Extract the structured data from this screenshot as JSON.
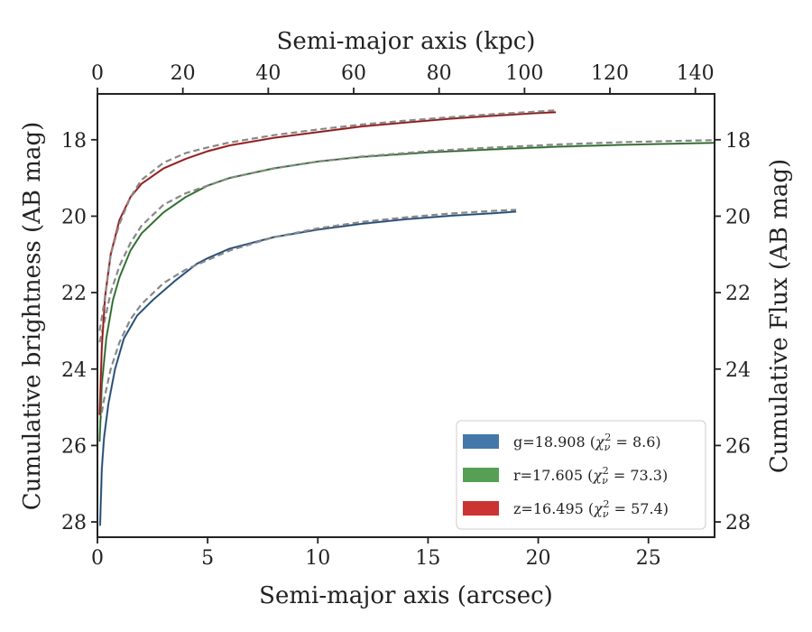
{
  "chart_data": {
    "type": "line",
    "xlabel": "Semi-major axis (arcsec)",
    "ylabel": "Cumulative brightness (AB mag)",
    "top_xlabel": "Semi-major axis (kpc)",
    "right_ylabel": "Cumulative Flux (AB mag)",
    "xlim": [
      0,
      28
    ],
    "ylim": [
      28.4,
      16.8
    ],
    "top_xlim": [
      0,
      144.5
    ],
    "x_ticks": [
      0,
      5,
      10,
      15,
      20,
      25
    ],
    "y_ticks": [
      18,
      20,
      22,
      24,
      26,
      28
    ],
    "top_x_ticks": [
      0,
      20,
      40,
      60,
      80,
      100,
      120,
      140
    ],
    "y_inverted": true,
    "grid": false,
    "legend_position": "lower-right",
    "series": [
      {
        "name": "g",
        "legend": {
          "prefix": "g=18.908 (",
          "chi": "χ",
          "sub": "ν",
          "sup": "2",
          "suffix": " = 8.6)"
        },
        "color": "#4477aa",
        "x": [
          0.12,
          0.2,
          0.3,
          0.5,
          0.8,
          1.2,
          1.8,
          2.5,
          3.5,
          4.5,
          5,
          6,
          8,
          10,
          12,
          14,
          16,
          18,
          19
        ],
        "y": [
          28.1,
          26.6,
          25.8,
          24.9,
          24.0,
          23.2,
          22.6,
          22.2,
          21.7,
          21.25,
          21.1,
          20.85,
          20.55,
          20.35,
          20.2,
          20.08,
          19.99,
          19.92,
          19.88
        ],
        "fit_x": [
          0.12,
          0.3,
          0.6,
          1.0,
          1.5,
          2.0,
          3.0,
          4.0,
          5.0,
          6.0,
          8.0,
          10.0,
          12.0,
          14.0,
          16.0,
          18.0,
          19.0
        ],
        "fit_y": [
          25.4,
          24.8,
          24.0,
          23.3,
          22.7,
          22.3,
          21.75,
          21.4,
          21.15,
          20.9,
          20.55,
          20.32,
          20.15,
          20.03,
          19.93,
          19.86,
          19.83
        ]
      },
      {
        "name": "r",
        "legend": {
          "prefix": "r=17.605 (",
          "chi": "χ",
          "sub": "ν",
          "sup": "2",
          "suffix": " = 73.3)"
        },
        "color": "#55a055",
        "x": [
          0.1,
          0.2,
          0.4,
          0.7,
          1.0,
          1.5,
          2.0,
          3.0,
          4.0,
          5.0,
          6.0,
          8.0,
          10.0,
          12.0,
          15.0,
          18.0,
          21.0,
          24.0,
          28.0
        ],
        "y": [
          25.9,
          24.4,
          23.2,
          22.2,
          21.6,
          20.9,
          20.45,
          19.9,
          19.5,
          19.2,
          19.0,
          18.75,
          18.57,
          18.45,
          18.33,
          18.25,
          18.18,
          18.13,
          18.08
        ],
        "fit_x": [
          0.1,
          0.3,
          0.6,
          1.0,
          1.5,
          2.0,
          3.0,
          4.0,
          5.0,
          6.0,
          8.0,
          10.0,
          12.0,
          15.0,
          18.0,
          21.0,
          24.0,
          28.0
        ],
        "fit_y": [
          23.3,
          22.8,
          22.0,
          21.3,
          20.7,
          20.25,
          19.7,
          19.4,
          19.2,
          19.0,
          18.75,
          18.57,
          18.44,
          18.3,
          18.2,
          18.12,
          18.06,
          18.01
        ]
      },
      {
        "name": "z",
        "legend": {
          "prefix": "z=16.495 (",
          "chi": "χ",
          "sub": "ν",
          "sup": "2",
          "suffix": " = 57.4)"
        },
        "color": "#cc3333",
        "x": [
          0.1,
          0.2,
          0.35,
          0.6,
          1.0,
          1.5,
          2.0,
          3.0,
          4.0,
          5.0,
          6.0,
          8.0,
          10.0,
          12.0,
          14.0,
          16.0,
          18.0,
          20.0,
          20.8
        ],
        "y": [
          25.2,
          23.4,
          22.1,
          21.0,
          20.1,
          19.5,
          19.15,
          18.75,
          18.5,
          18.3,
          18.15,
          17.95,
          17.8,
          17.65,
          17.55,
          17.45,
          17.37,
          17.3,
          17.28
        ],
        "fit_x": [
          0.1,
          0.3,
          0.6,
          1.0,
          1.5,
          2.0,
          3.0,
          4.0,
          5.0,
          6.0,
          8.0,
          10.0,
          12.0,
          14.0,
          16.0,
          18.0,
          20.0,
          20.8
        ],
        "fit_y": [
          23.0,
          22.3,
          21.0,
          20.2,
          19.5,
          19.05,
          18.6,
          18.35,
          18.2,
          18.07,
          17.88,
          17.73,
          17.6,
          17.5,
          17.41,
          17.33,
          17.26,
          17.23
        ]
      }
    ]
  }
}
